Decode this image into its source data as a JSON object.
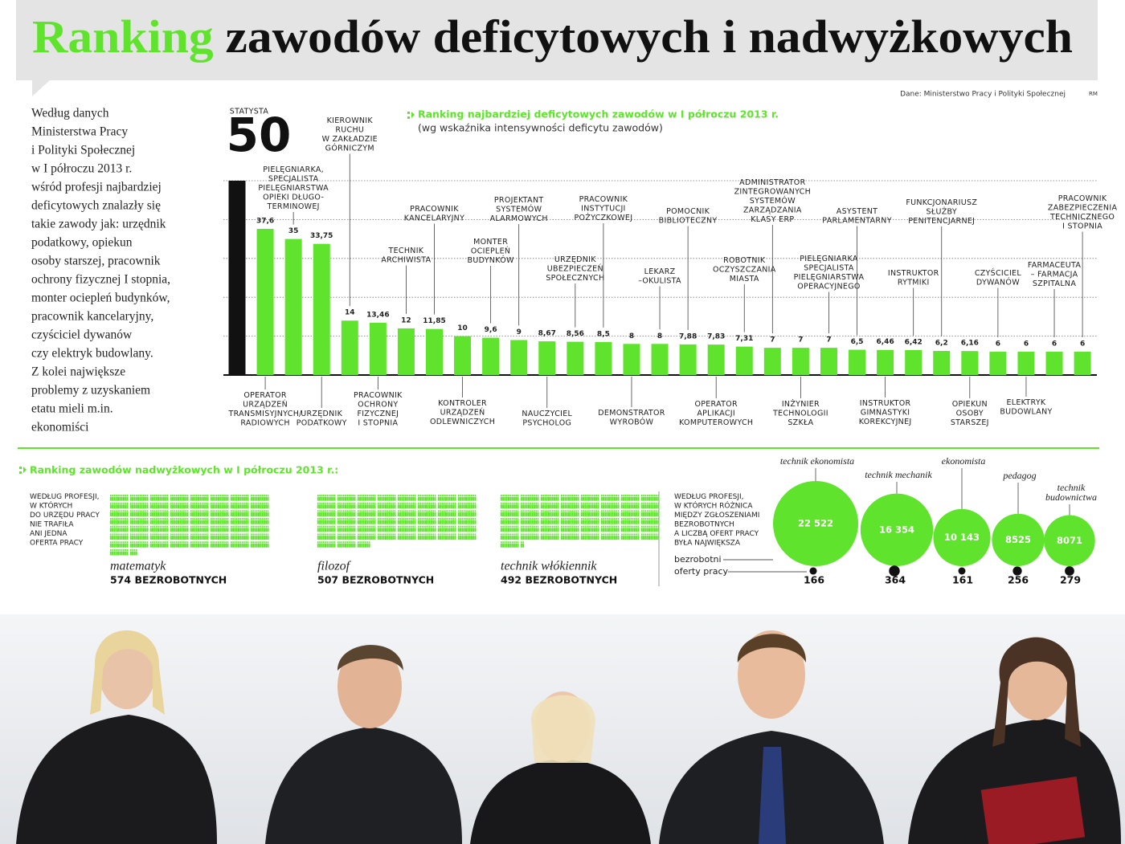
{
  "title_highlight": "Ranking",
  "title_rest": "zawodów deficytowych i nadwyżkowych",
  "source": "Dane: Ministerstwo Pracy i Polityki Społecznej",
  "author": "RM",
  "intro": [
    "Według danych",
    "Ministerstwa Pracy",
    "i Polityki Społecznej",
    "w I półroczu 2013 r.",
    "wśród profesji najbardziej",
    "deficytowych znalazły się",
    "takie zawody jak: urzędnik",
    "podatkowy, opiekun",
    "osoby starszej, pracownik",
    "ochrony fizycznej I stopnia,",
    "monter ociepleń budynków,",
    "pracownik kancelaryjny,",
    "czyściciel dywanów",
    "czy elektryk budowlany.",
    "Z kolei największe",
    "problemy z uzyskaniem",
    "etatu mieli m.in.",
    "ekonomiści"
  ],
  "chart_data": [
    {
      "type": "bar",
      "title": "Ranking najbardziej deficytowych zawodów w I półroczu 2013 r.",
      "subtitle": "(wg wskaźnika intensywności deficytu zawodów)",
      "categories": [
        "STATYSTA",
        "OPERATOR\nURZĄDZEŃ\nTRANSMISYJNYCH/\nRADIOWYCH",
        "PIELĘGNIARKA,\nSPECJALISTA\nPIELĘGNIARSTWA\nOPIEKI DŁUGO-\nTERMINOWEJ",
        "URZĘDNIK\nPODATKOWY",
        "KIEROWNIK\nRUCHU\nW ZAKŁADZIE\nGÓRNICZYM",
        "PRACOWNIK\nOCHRONY\nFIZYCZNEJ\nI STOPNIA",
        "TECHNIK\nARCHIWISTA",
        "PRACOWNIK\nKANCELARYJNY",
        "KONTROLER\nURZĄDZEŃ\nODLEWNICZYCH",
        "MONTER\nOCIEPLEŃ\nBUDYNKÓW",
        "PROJEKTANT\nSYSTEMÓW\nALARMOWYCH",
        "NAUCZYCIEL\nPSYCHOLOG",
        "URZĘDNIK\nUBEZPIECZEŃ\nSPOŁECZNYCH",
        "PRACOWNIK\nINSTYTUCJI\nPOŻYCZKOWEJ",
        "DEMONSTRATOR\nWYROBÓW",
        "LEKARZ\n–OKULISTA",
        "POMOCNIK\nBIBLIOTECZNY",
        "OPERATOR\nAPLIKACJI\nKOMPUTEROWYCH",
        "ROBOTNIK\nOCZYSZCZANIA\nMIASTA",
        "ADMINISTRATOR\nZINTEGROWANYCH\nSYSTEMÓW\nZARZĄDZANIA\nKLASY ERP",
        "INŻYNIER\nTECHNOLOGII\nSZKŁA",
        "PIELĘGNIARKA\nSPECJALISTA\nPIELĘGNIARSTWA\nOPERACYJNEGO",
        "ASYSTENT\nPARLAMENTARNY",
        "INSTRUKTOR\nGIMNASTYKI\nKOREKCYJNEJ",
        "INSTRUKTOR\nRYTMIKI",
        "FUNKCJONARIUSZ\nSŁUŻBY\nPENITENCJARNEJ",
        "OPIEKUN\nOSOBY\nSTARSZEJ",
        "CZYŚCICIEL\nDYWANÓW",
        "ELEKTRYK\nBUDOWLANY",
        "FARMACEUTA\n– FARMACJA\nSZPITALNA",
        "PRACOWNIK\nZABEZPIECZENIA\nTECHNICZNEGO\nI STOPNIA"
      ],
      "values": [
        50,
        37.6,
        35,
        33.75,
        14,
        13.46,
        12,
        11.85,
        10,
        9.6,
        9,
        8.67,
        8.56,
        8.5,
        8,
        8,
        7.88,
        7.83,
        7.31,
        7,
        7,
        7,
        6.5,
        6.46,
        6.42,
        6.2,
        6.16,
        6,
        6,
        6,
        6
      ],
      "value_labels": [
        "50",
        "37,6",
        "35",
        "33,75",
        "14",
        "13,46",
        "12",
        "11,85",
        "10",
        "9,6",
        "9",
        "8,67",
        "8,56",
        "8,5",
        "8",
        "8",
        "7,88",
        "7,83",
        "7,31",
        "7",
        "7",
        "7",
        "6,5",
        "6,46",
        "6,42",
        "6,2",
        "6,16",
        "6",
        "6",
        "6",
        "6"
      ],
      "label_positions": [
        "top",
        "bottom",
        "top",
        "bottom",
        "top",
        "bottom",
        "top",
        "top",
        "bottom",
        "top",
        "top",
        "bottom",
        "top",
        "top",
        "bottom",
        "top",
        "top",
        "bottom",
        "top",
        "top",
        "bottom",
        "top",
        "top",
        "bottom",
        "top",
        "top",
        "bottom",
        "top",
        "bottom",
        "top",
        "top"
      ],
      "color": "#5fe32c",
      "highlight": {
        "index": 0,
        "color": "#111111"
      },
      "ylim": [
        0,
        50
      ],
      "yticks": [
        10,
        20,
        30,
        40,
        50
      ],
      "grid": "dotted"
    },
    {
      "type": "pictogram",
      "title": "Ranking zawodów nadwyżkowych w I półroczu 2013 r.:",
      "note": "WEDŁUG PROFESJI,\nW KTÓRYCH\nDO URZĘDU PRACY\nNIE TRAFIŁA\nANI JEDNA\nOFERTA PRACY",
      "categories": [
        "matematyk",
        "filozof",
        "technik włókiennik"
      ],
      "values": [
        574,
        507,
        492
      ],
      "value_labels": [
        "574 BEZROBOTNYCH",
        "507 BEZROBOTNYCH",
        "492 BEZROBOTNYCH"
      ],
      "color": "#5fe32c"
    },
    {
      "type": "bubble",
      "note": "WEDŁUG PROFESJI,\nW KTÓRYCH RÓŻNICA\nMIĘDZY ZGŁOSZENIAMI\nBEZROBOTNYCH\nA LICZBĄ OFERT PRACY\nBYŁA NAJWIĘKSZA",
      "categories": [
        "technik ekonomista",
        "technik mechanik",
        "ekonomista",
        "pedagog",
        "technik\nbudownictwa"
      ],
      "series": [
        {
          "name": "bezrobotni",
          "color": "#5fe32c",
          "values": [
            22522,
            16354,
            10143,
            8525,
            8071
          ],
          "value_labels": [
            "22 522",
            "16 354",
            "10 143",
            "8525",
            "8071"
          ]
        },
        {
          "name": "oferty pracy",
          "color": "#111111",
          "values": [
            166,
            364,
            161,
            256,
            279
          ]
        }
      ]
    }
  ]
}
